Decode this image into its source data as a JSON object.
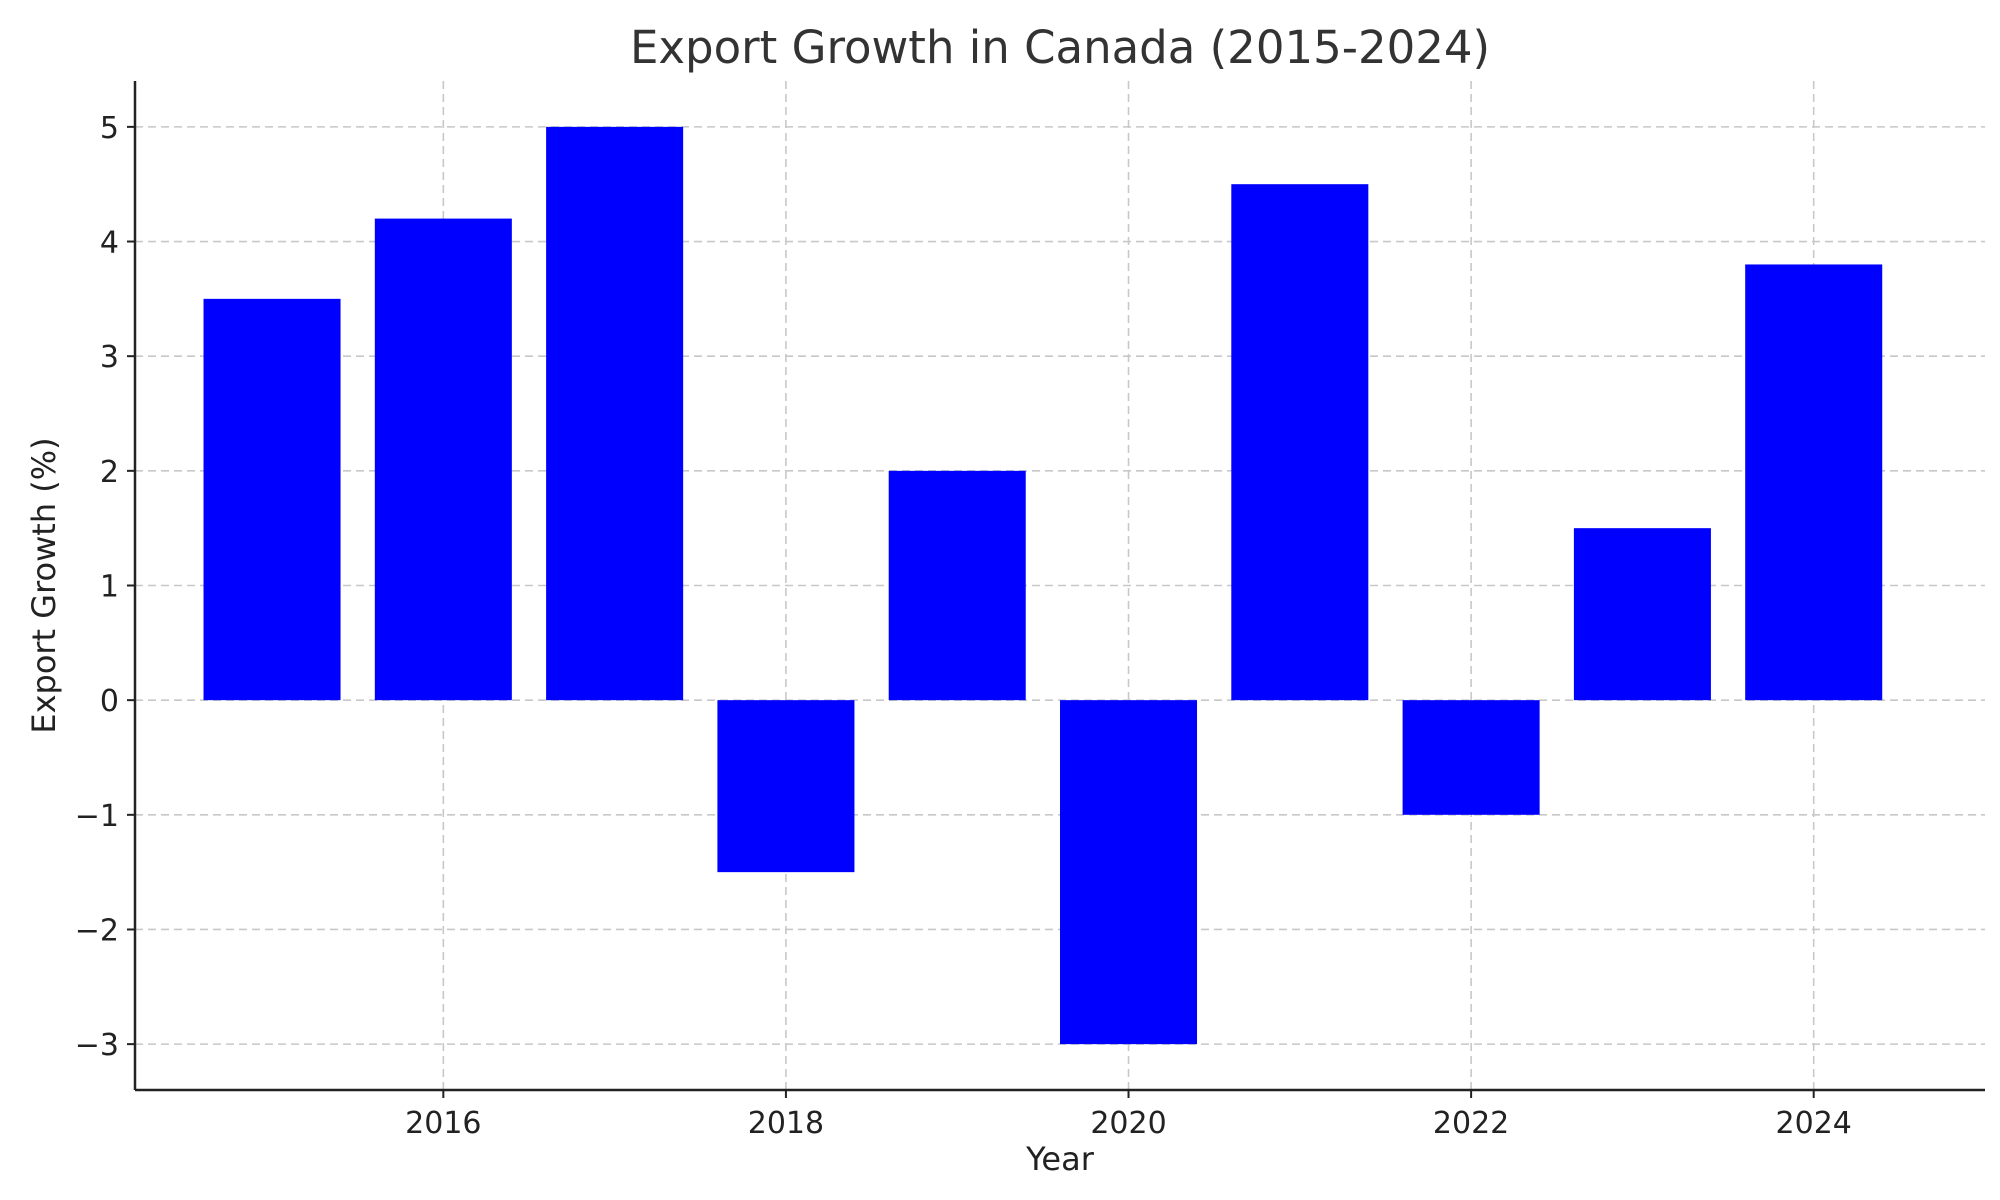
{
  "chart_data": {
    "type": "bar",
    "title": "Export Growth in Canada (2015-2024)",
    "xlabel": "Year",
    "ylabel": "Export Growth (%)",
    "categories": [
      2015,
      2016,
      2017,
      2018,
      2019,
      2020,
      2021,
      2022,
      2023,
      2024
    ],
    "values": [
      3.5,
      4.2,
      5.0,
      -1.5,
      2.0,
      -3.0,
      4.5,
      -1.0,
      1.5,
      3.8
    ],
    "xlim": [
      2014.2,
      2025.0
    ],
    "ylim": [
      -3.4,
      5.4
    ],
    "xticks": [
      2016,
      2018,
      2020,
      2022,
      2024
    ],
    "xtick_labels": [
      "2016",
      "2018",
      "2020",
      "2022",
      "2024"
    ],
    "yticks": [
      -3,
      -2,
      -1,
      0,
      1,
      2,
      3,
      4,
      5
    ],
    "ytick_labels": [
      "−3",
      "−2",
      "−1",
      "0",
      "1",
      "2",
      "3",
      "4",
      "5"
    ],
    "bar_width_years": 0.8,
    "grid": true,
    "bar_color": "#0000ff"
  }
}
